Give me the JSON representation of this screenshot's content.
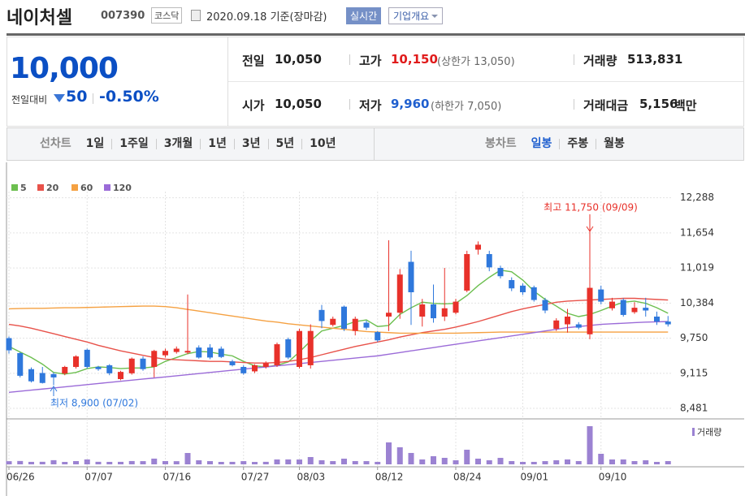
{
  "header": {
    "name": "네이처셀",
    "code": "007390",
    "market": "코스닥",
    "date": "2020.09.18 기준(장마감)",
    "realtime": "실시간",
    "company_info": "기업개요"
  },
  "price": {
    "current": "10,000",
    "change_label": "전일대비",
    "change": "50",
    "change_rate": "-0.50%"
  },
  "stats": [
    {
      "label": "전일",
      "value": "10,050"
    },
    {
      "label": "고가",
      "value": "10,150",
      "note": "(상한가 13,050)"
    },
    {
      "label": "거래량",
      "value": "513,831"
    },
    {
      "label": "시가",
      "value": "10,050"
    },
    {
      "label": "저가",
      "value": "9,960",
      "note": "(하한가 7,050)"
    },
    {
      "label": "거래대금",
      "value": "5,156",
      "unit": "백만"
    }
  ],
  "tabs": {
    "line_label": "선차트",
    "line": [
      "1일",
      "1주일",
      "3개월",
      "1년",
      "3년",
      "5년",
      "10년"
    ],
    "candle_label": "봉차트",
    "candle": [
      "일봉",
      "주봉",
      "월봉"
    ],
    "active": "일봉"
  },
  "chart_data": {
    "type": "candlestick",
    "categories": [
      "06/26",
      null,
      null,
      null,
      null,
      null,
      null,
      "07/07",
      null,
      null,
      null,
      null,
      null,
      null,
      "07/16",
      null,
      null,
      null,
      null,
      null,
      null,
      "07/27",
      null,
      null,
      null,
      null,
      "08/03",
      null,
      null,
      null,
      null,
      null,
      null,
      "08/12",
      null,
      null,
      null,
      null,
      null,
      null,
      "08/24",
      null,
      null,
      null,
      null,
      null,
      "09/01",
      null,
      null,
      null,
      null,
      null,
      null,
      "09/10",
      null,
      null,
      null,
      null,
      null,
      null
    ],
    "open": [
      9750,
      9480,
      9190,
      9120,
      9100,
      9110,
      9230,
      9540,
      9230,
      9260,
      9010,
      9115,
      9380,
      9230,
      9440,
      9500,
      9490,
      9580,
      9580,
      9560,
      9330,
      9230,
      9150,
      9230,
      9260,
      9730,
      9230,
      9260,
      10260,
      9990,
      10320,
      9880,
      10030,
      9860,
      10140,
      10210,
      11130,
      10140,
      10360,
      10140,
      10210,
      10610,
      11350,
      11270,
      11020,
      10800,
      10700,
      10670,
      10440,
      9920,
      10000,
      10000,
      9820,
      10630,
      10290,
      10440,
      10220,
      10300,
      10140,
      10050
    ],
    "high": [
      9780,
      9500,
      9220,
      9230,
      9130,
      9250,
      9440,
      9560,
      9250,
      9280,
      9160,
      9400,
      9420,
      9540,
      9560,
      9600,
      10540,
      9620,
      9640,
      9600,
      9360,
      9260,
      9280,
      9330,
      9670,
      9760,
      9920,
      10000,
      10350,
      10140,
      10340,
      10140,
      10070,
      9880,
      11520,
      11000,
      11330,
      10460,
      10720,
      11020,
      10460,
      11330,
      11500,
      11330,
      11060,
      10850,
      10740,
      10700,
      10480,
      10110,
      10280,
      10040,
      11750,
      10700,
      10480,
      10470,
      10400,
      10480,
      10230,
      10150
    ],
    "low": [
      9470,
      9040,
      8950,
      8930,
      8900,
      9080,
      9200,
      9200,
      9160,
      9080,
      8990,
      9090,
      9160,
      9040,
      9400,
      9470,
      9460,
      9380,
      9370,
      9390,
      9240,
      9090,
      9120,
      9200,
      9230,
      9370,
      9200,
      9200,
      9930,
      9960,
      9880,
      9800,
      9900,
      9680,
      9880,
      10100,
      9990,
      9960,
      10030,
      10060,
      10180,
      10580,
      11260,
      10960,
      10830,
      10600,
      10530,
      10410,
      10200,
      9880,
      9850,
      9910,
      9730,
      10360,
      10250,
      10140,
      10190,
      10140,
      9990,
      9960
    ],
    "close": [
      9530,
      9070,
      8970,
      8940,
      9040,
      9230,
      9420,
      9230,
      9190,
      9115,
      9140,
      9380,
      9190,
      9520,
      9520,
      9560,
      9520,
      9400,
      9400,
      9410,
      9260,
      9115,
      9260,
      9300,
      9640,
      9400,
      9880,
      9880,
      10060,
      10100,
      9920,
      10100,
      9940,
      9710,
      10210,
      10900,
      10580,
      10360,
      10110,
      10290,
      10410,
      11270,
      11440,
      11030,
      10870,
      10650,
      10580,
      10440,
      10250,
      10070,
      10140,
      9940,
      10660,
      10410,
      10410,
      10170,
      10300,
      10250,
      10050,
      10000
    ],
    "volume": [
      498000,
      530000,
      391000,
      402000,
      655000,
      380000,
      512000,
      770000,
      401000,
      388000,
      395000,
      520000,
      505000,
      902000,
      515000,
      498000,
      1790000,
      640000,
      507000,
      385000,
      392000,
      506000,
      377000,
      398000,
      768000,
      772000,
      760000,
      1150000,
      645000,
      510000,
      893000,
      517000,
      508000,
      390000,
      3460000,
      2690000,
      1795000,
      772000,
      1281000,
      1025000,
      640000,
      2305000,
      897000,
      641000,
      1020000,
      512000,
      385000,
      389000,
      508000,
      642000,
      770000,
      515000,
      6015000,
      1665000,
      768000,
      771000,
      512000,
      640000,
      386000,
      513831
    ],
    "volume_label": "거래량",
    "volume_color": "#9b82d2",
    "up_color": "#e8312a",
    "down_color": "#2f78dc",
    "series": [
      {
        "name": "5",
        "color": "#6cbf4f",
        "values": [
          9600,
          9500,
          9400,
          9280,
          9130,
          9100,
          9130,
          9200,
          9230,
          9220,
          9200,
          9210,
          9210,
          9230,
          9330,
          9400,
          9470,
          9510,
          9500,
          9460,
          9430,
          9330,
          9250,
          9230,
          9260,
          9320,
          9500,
          9700,
          9880,
          9930,
          9980,
          10050,
          10080,
          9960,
          9980,
          10180,
          10300,
          10400,
          10380,
          10370,
          10380,
          10520,
          10700,
          10850,
          10980,
          10950,
          10800,
          10600,
          10450,
          10330,
          10200,
          10140,
          10180,
          10250,
          10330,
          10400,
          10420,
          10380,
          10300,
          10200
        ]
      },
      {
        "name": "20",
        "color": "#e8524a",
        "values": [
          10000,
          9970,
          9930,
          9880,
          9830,
          9780,
          9730,
          9680,
          9620,
          9570,
          9520,
          9480,
          9440,
          9400,
          9370,
          9360,
          9350,
          9340,
          9330,
          9330,
          9320,
          9310,
          9300,
          9300,
          9310,
          9330,
          9360,
          9400,
          9450,
          9500,
          9550,
          9600,
          9640,
          9680,
          9720,
          9770,
          9810,
          9850,
          9880,
          9910,
          9950,
          10000,
          10050,
          10110,
          10170,
          10230,
          10280,
          10320,
          10360,
          10400,
          10420,
          10430,
          10440,
          10450,
          10460,
          10470,
          10470,
          10460,
          10450,
          10440
        ]
      },
      {
        "name": "60",
        "color": "#f5a142",
        "values": [
          10280,
          10285,
          10290,
          10290,
          10295,
          10300,
          10300,
          10305,
          10310,
          10315,
          10320,
          10325,
          10330,
          10330,
          10320,
          10300,
          10270,
          10240,
          10210,
          10180,
          10150,
          10120,
          10090,
          10060,
          10040,
          10010,
          9990,
          9970,
          9950,
          9930,
          9910,
          9890,
          9870,
          9860,
          9850,
          9840,
          9840,
          9840,
          9840,
          9840,
          9840,
          9845,
          9850,
          9855,
          9860,
          9860,
          9860,
          9860,
          9860,
          9860,
          9860,
          9860,
          9860,
          9860,
          9860,
          9860,
          9860,
          9860,
          9860,
          9860
        ]
      },
      {
        "name": "120",
        "color": "#9b6bd8",
        "values": [
          8770,
          8790,
          8810,
          8830,
          8850,
          8870,
          8890,
          8910,
          8930,
          8950,
          8970,
          8990,
          9010,
          9030,
          9050,
          9070,
          9090,
          9110,
          9130,
          9150,
          9170,
          9190,
          9210,
          9230,
          9250,
          9270,
          9290,
          9310,
          9330,
          9350,
          9370,
          9390,
          9410,
          9430,
          9460,
          9490,
          9520,
          9550,
          9580,
          9610,
          9640,
          9670,
          9700,
          9730,
          9760,
          9790,
          9820,
          9850,
          9880,
          9910,
          9940,
          9960,
          9980,
          10000,
          10010,
          10020,
          10030,
          10040,
          10045,
          10050
        ]
      }
    ],
    "ylim": [
      8320,
      12400
    ],
    "yticks": [
      {
        "value": 8481,
        "label": "8,481"
      },
      {
        "value": 9115,
        "label": "9,115"
      },
      {
        "value": 9750,
        "label": "9,750"
      },
      {
        "value": 10384,
        "label": "10,384"
      },
      {
        "value": 11019,
        "label": "11,019"
      },
      {
        "value": 11654,
        "label": "11,654"
      },
      {
        "value": 12288,
        "label": "12,288"
      }
    ],
    "grid": true,
    "annotations": [
      "최고 11,750 (09/09)",
      "최저 8,900 (07/02)"
    ]
  }
}
